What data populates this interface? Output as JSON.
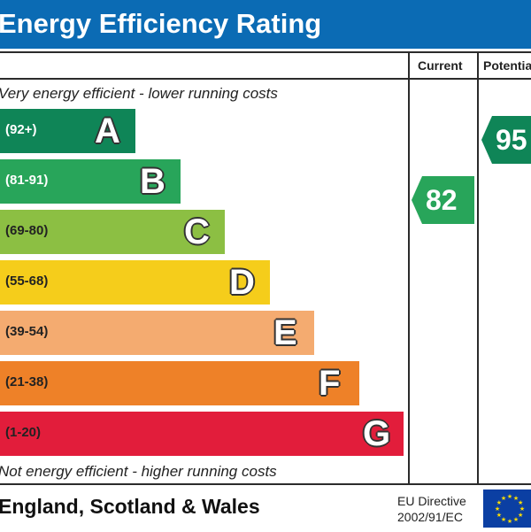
{
  "header": {
    "title": "Energy Efficiency Rating"
  },
  "columns": {
    "current": "Current",
    "potential": "Potential"
  },
  "captions": {
    "top": "Very energy efficient - lower running costs",
    "bottom": "Not energy efficient - higher running costs"
  },
  "chart_data": {
    "type": "bar",
    "title": "Energy Efficiency Rating",
    "categories": [
      "A",
      "B",
      "C",
      "D",
      "E",
      "F",
      "G"
    ],
    "bands": [
      {
        "letter": "A",
        "range": "(92+)",
        "color": "#0f8557"
      },
      {
        "letter": "B",
        "range": "(81-91)",
        "color": "#28a55a"
      },
      {
        "letter": "C",
        "range": "(69-80)",
        "color": "#8cbf43"
      },
      {
        "letter": "D",
        "range": "(55-68)",
        "color": "#f5cd1b"
      },
      {
        "letter": "E",
        "range": "(39-54)",
        "color": "#f4ab70"
      },
      {
        "letter": "F",
        "range": "(21-38)",
        "color": "#ee8128"
      },
      {
        "letter": "G",
        "range": "(1-20)",
        "color": "#e21d3b"
      }
    ],
    "current": {
      "label": "Current",
      "value": "82",
      "band": "B",
      "color": "#28a55a"
    },
    "potential": {
      "label": "Potential",
      "value": "95",
      "band": "A",
      "color": "#0f8557"
    }
  },
  "footer": {
    "region": "England, Scotland & Wales",
    "directive_line1": "EU Directive",
    "directive_line2": "2002/91/EC"
  }
}
